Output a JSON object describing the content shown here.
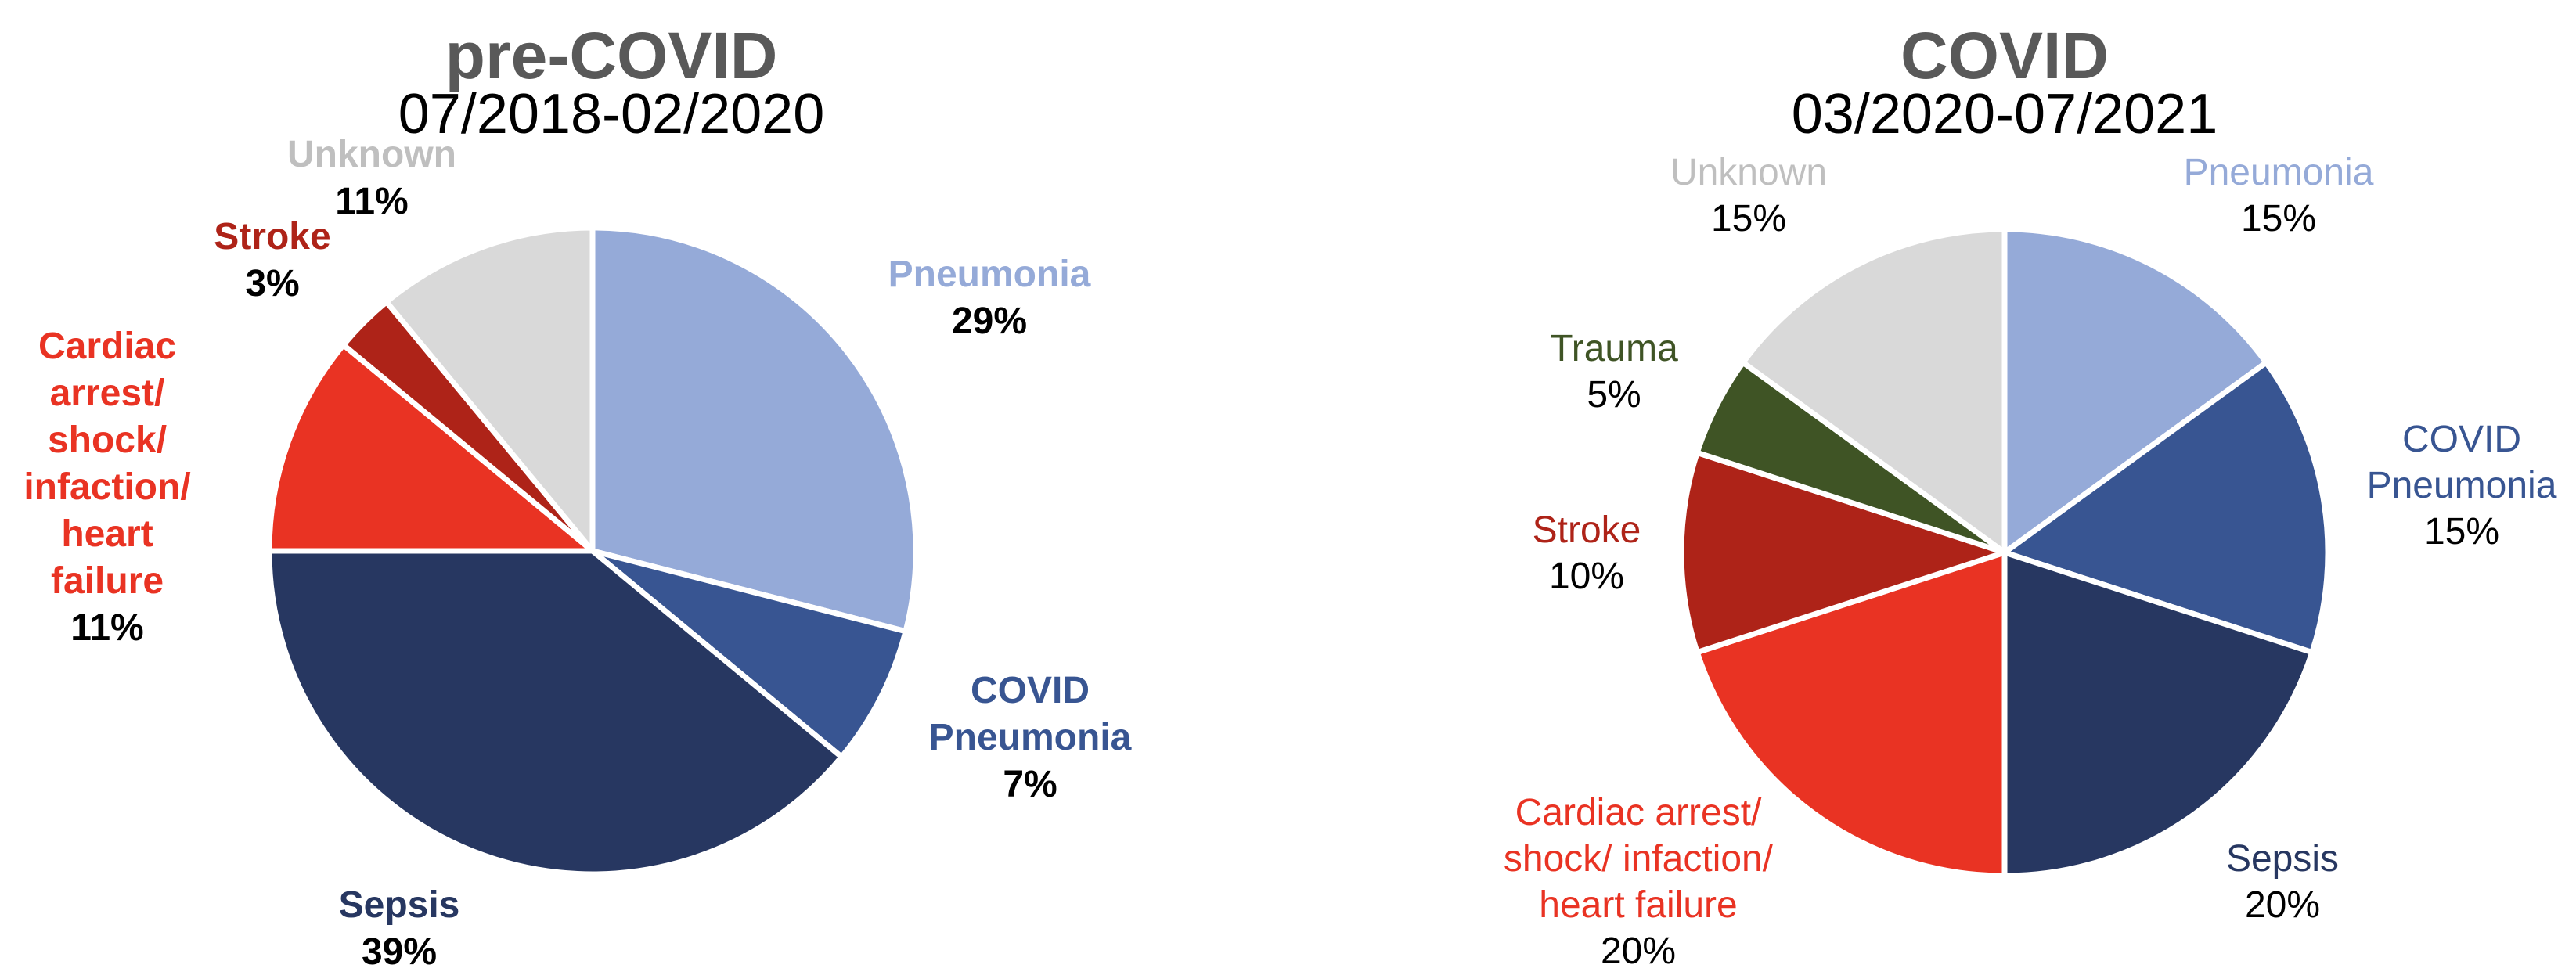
{
  "chart_data": [
    {
      "type": "pie",
      "title": "pre-COVID",
      "subtitle": "07/2018-02/2020",
      "bold_labels": true,
      "slices": [
        {
          "label": [
            "Pneumonia"
          ],
          "value": 29,
          "pct": "29%",
          "color": "#95AAD8",
          "label_color": "#95AAD8"
        },
        {
          "label": [
            "COVID",
            "Pneumonia"
          ],
          "value": 7,
          "pct": "7%",
          "color": "#385592",
          "label_color": "#385592"
        },
        {
          "label": [
            "Sepsis"
          ],
          "value": 39,
          "pct": "39%",
          "color": "#273761",
          "label_color": "#273761"
        },
        {
          "label": [
            "Cardiac",
            "arrest/",
            "shock/",
            "infaction/",
            "heart",
            "failure"
          ],
          "value": 11,
          "pct": "11%",
          "color": "#E93323",
          "label_color": "#E93323"
        },
        {
          "label": [
            "Stroke"
          ],
          "value": 3,
          "pct": "3%",
          "color": "#AE2318",
          "label_color": "#AE2318"
        },
        {
          "label": [
            "Unknown"
          ],
          "value": 11,
          "pct": "11%",
          "color": "#D9D9D9",
          "label_color": "#BFBFBF"
        }
      ]
    },
    {
      "type": "pie",
      "title": "COVID",
      "subtitle": "03/2020-07/2021",
      "bold_labels": false,
      "slices": [
        {
          "label": [
            "Pneumonia"
          ],
          "value": 15,
          "pct": "15%",
          "color": "#95AAD8",
          "label_color": "#95AAD8"
        },
        {
          "label": [
            "COVID",
            "Pneumonia"
          ],
          "value": 15,
          "pct": "15%",
          "color": "#385592",
          "label_color": "#385592"
        },
        {
          "label": [
            "Sepsis"
          ],
          "value": 20,
          "pct": "20%",
          "color": "#273761",
          "label_color": "#273761"
        },
        {
          "label": [
            "Cardiac arrest/",
            "shock/ infaction/",
            "heart failure"
          ],
          "value": 20,
          "pct": "20%",
          "color": "#E93323",
          "label_color": "#E93323"
        },
        {
          "label": [
            "Stroke"
          ],
          "value": 10,
          "pct": "10%",
          "color": "#AE2318",
          "label_color": "#AE2318"
        },
        {
          "label": [
            "Trauma"
          ],
          "value": 5,
          "pct": "5%",
          "color": "#3F5425",
          "label_color": "#3F5425"
        },
        {
          "label": [
            "Unknown"
          ],
          "value": 15,
          "pct": "15%",
          "color": "#D9D9D9",
          "label_color": "#BFBFBF"
        }
      ]
    }
  ]
}
